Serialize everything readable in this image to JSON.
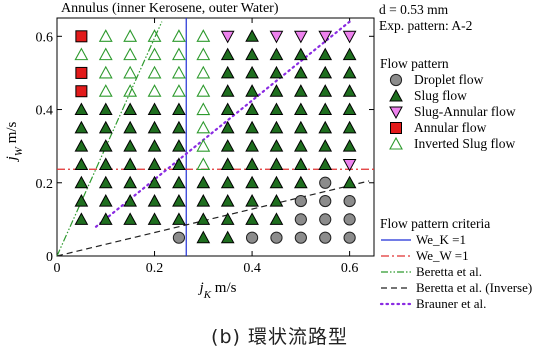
{
  "chart_data": {
    "type": "scatter",
    "title": "Annulus (inner Kerosene, outer Water)",
    "info": [
      "d = 0.53 mm",
      "Exp. pattern: A-2"
    ],
    "xlabel": "jK  m/s",
    "ylabel": "jW  m/s",
    "xlim": [
      0,
      0.65
    ],
    "ylim": [
      0,
      0.65
    ],
    "xticks": [
      0,
      0.2,
      0.4,
      0.6
    ],
    "yticks": [
      0,
      0.2,
      0.4,
      0.6
    ],
    "xtick_labels": [
      "0",
      "0.2",
      "0.4",
      "0.6"
    ],
    "ytick_labels": [
      "0",
      "0.2",
      "0.4",
      "0.6"
    ],
    "grid": false,
    "legend_title": "Flow pattern",
    "legend": [
      {
        "key": "droplet",
        "label": "Droplet flow",
        "marker": "circle",
        "fill": "#8c8c8c"
      },
      {
        "key": "slug",
        "label": "Slug flow",
        "marker": "triangle-up",
        "fill": "#1f6e1f"
      },
      {
        "key": "slug_annular",
        "label": "Slug-Annular flow",
        "marker": "triangle-down",
        "fill": "#ee82ee"
      },
      {
        "key": "annular",
        "label": "Annular flow",
        "marker": "square",
        "fill": "#e21b1b"
      },
      {
        "key": "inverted_slug",
        "label": "Inverted Slug flow",
        "marker": "triangle-up-open",
        "fill": "none"
      }
    ],
    "criteria_title": "Flow pattern criteria",
    "criteria": [
      {
        "label": "We_K =1",
        "color": "#1f2fd6",
        "style": "solid"
      },
      {
        "label": "We_W =1",
        "color": "#e03030",
        "style": "dashdot"
      },
      {
        "label": "Beretta et al.",
        "color": "#2e9a2e",
        "style": "dashdotdot"
      },
      {
        "label": "Beretta et al. (Inverse)",
        "color": "#222222",
        "style": "dashed"
      },
      {
        "label": "Brauner et al.",
        "color": "#8a2be2",
        "style": "dotted"
      }
    ],
    "criteria_lines": {
      "we_k_x": 0.265,
      "we_w_y": 0.237,
      "beretta": [
        [
          0,
          0
        ],
        [
          0.215,
          0.64
        ]
      ],
      "beretta_inverse": [
        [
          0,
          0
        ],
        [
          0.64,
          0.205
        ]
      ],
      "brauner": [
        [
          0.08,
          0.08
        ],
        [
          0.6,
          0.64
        ]
      ]
    },
    "x": [
      0.05,
      0.1,
      0.15,
      0.2,
      0.25,
      0.3,
      0.35,
      0.4,
      0.45,
      0.5,
      0.55,
      0.6
    ],
    "y": [
      0.05,
      0.1,
      0.15,
      0.2,
      0.25,
      0.3,
      0.35,
      0.4,
      0.45,
      0.5,
      0.55,
      0.6
    ],
    "grid_rows_top_to_bottom": [
      [
        "annular",
        "inverted_slug",
        "inverted_slug",
        "inverted_slug",
        "inverted_slug",
        "inverted_slug",
        "slug_annular",
        "slug",
        "slug_annular",
        "slug_annular",
        "slug_annular",
        "slug_annular"
      ],
      [
        "inverted_slug",
        "inverted_slug",
        "inverted_slug",
        "inverted_slug",
        "inverted_slug",
        "inverted_slug",
        "slug",
        "slug",
        "slug",
        "slug",
        "slug",
        "slug"
      ],
      [
        "annular",
        "inverted_slug",
        "inverted_slug",
        "inverted_slug",
        "inverted_slug",
        "inverted_slug",
        "slug",
        "slug",
        "slug",
        "slug",
        "slug",
        "slug"
      ],
      [
        "annular",
        "inverted_slug",
        "inverted_slug",
        "inverted_slug",
        "inverted_slug",
        "inverted_slug",
        "slug",
        "slug",
        "slug",
        "slug",
        "slug",
        "slug"
      ],
      [
        "slug",
        "slug",
        "slug",
        "slug",
        "slug",
        "inverted_slug",
        "slug",
        "slug",
        "slug",
        "slug",
        "slug",
        "slug"
      ],
      [
        "slug",
        "slug",
        "slug",
        "slug",
        "slug",
        "inverted_slug",
        "slug",
        "slug",
        "slug",
        "slug",
        "slug",
        "slug"
      ],
      [
        "slug",
        "slug",
        "slug",
        "slug",
        "slug",
        "inverted_slug",
        "slug",
        "slug",
        "slug",
        "slug",
        "slug",
        "slug"
      ],
      [
        "slug",
        "slug",
        "slug",
        "slug",
        "slug",
        "inverted_slug",
        "slug",
        "slug",
        "slug",
        "slug",
        "slug",
        "slug_annular"
      ],
      [
        "slug",
        "slug",
        "slug",
        "slug",
        "slug",
        "slug",
        "slug",
        "slug",
        "slug",
        "slug",
        "droplet",
        "slug"
      ],
      [
        "slug",
        "slug",
        "slug",
        "slug",
        "slug",
        "slug",
        "slug",
        "slug",
        "slug",
        "droplet",
        "droplet",
        "droplet"
      ],
      [
        "slug",
        "slug",
        "slug",
        "slug",
        "slug",
        "slug",
        "slug",
        "slug",
        "slug",
        "droplet",
        "droplet",
        "droplet"
      ],
      [
        null,
        null,
        null,
        null,
        "droplet",
        "slug",
        "slug",
        "droplet",
        "droplet",
        "droplet",
        "droplet",
        "droplet"
      ]
    ]
  },
  "caption": "(b) 環状流路型"
}
